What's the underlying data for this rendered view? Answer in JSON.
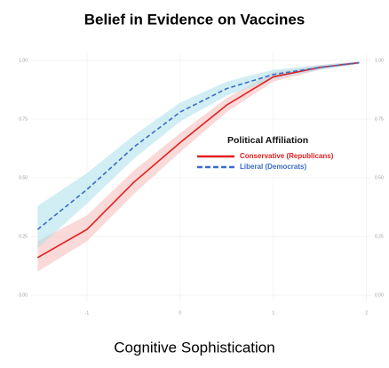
{
  "chart_data": {
    "type": "line",
    "title": "Belief in Evidence on Vaccines",
    "x_label": "Cognitive Sophistication",
    "legend_title": "Political Affiliation",
    "x": [
      -1.53,
      -1,
      -0.5,
      0,
      0.5,
      1,
      1.5,
      1.92
    ],
    "series": [
      {
        "name": "Conservative (Republicans)",
        "color": "#e02020",
        "band_color": "#f6b9b9",
        "dash": "solid",
        "values": [
          0.16,
          0.28,
          0.48,
          0.65,
          0.81,
          0.93,
          0.97,
          0.99
        ],
        "lower": [
          0.1,
          0.23,
          0.43,
          0.61,
          0.78,
          0.91,
          0.96,
          0.985
        ],
        "upper": [
          0.23,
          0.34,
          0.53,
          0.69,
          0.84,
          0.95,
          0.98,
          0.995
        ]
      },
      {
        "name": "Liberal (Democrats)",
        "color": "#3b6cc7",
        "band_color": "#a9e0ea",
        "dash": "dashed",
        "values": [
          0.28,
          0.45,
          0.63,
          0.78,
          0.88,
          0.94,
          0.97,
          0.99
        ],
        "lower": [
          0.2,
          0.39,
          0.58,
          0.74,
          0.85,
          0.92,
          0.96,
          0.985
        ],
        "upper": [
          0.38,
          0.52,
          0.68,
          0.82,
          0.91,
          0.96,
          0.98,
          0.995
        ]
      }
    ],
    "xlim": [
      -1.6,
      2.05
    ],
    "xticks": [
      -1,
      0,
      1,
      2
    ],
    "ylim": [
      -0.03,
      1.03
    ],
    "yticks": [
      {
        "value": 0,
        "label": "0.00"
      },
      {
        "value": 0.25,
        "label": "0.25"
      },
      {
        "value": 0.5,
        "label": "0.50"
      },
      {
        "value": 0.75,
        "label": "0.75"
      },
      {
        "value": 1,
        "label": "1.00"
      }
    ],
    "grid": true
  }
}
